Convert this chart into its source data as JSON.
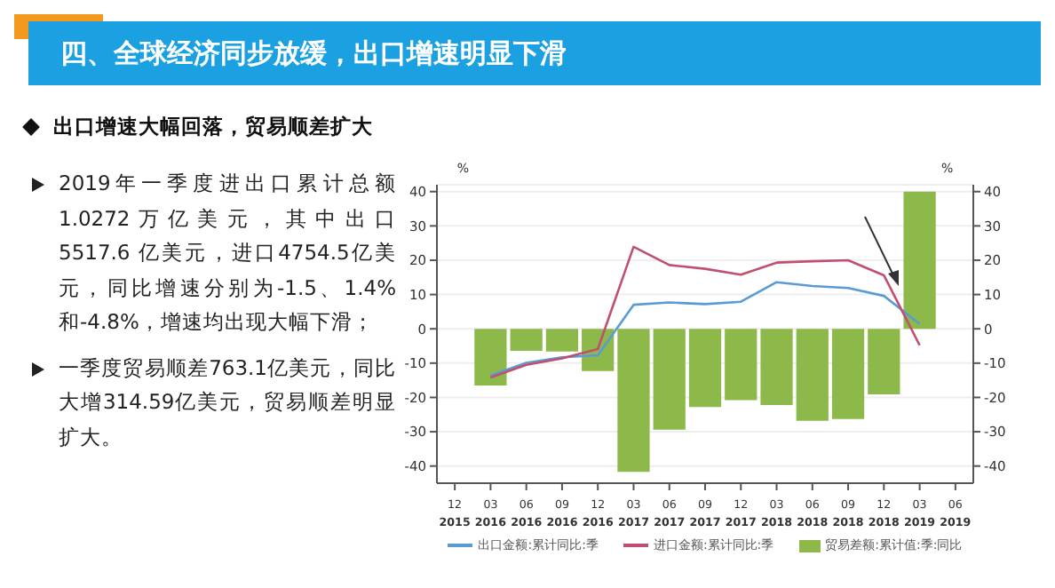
{
  "chart_data": {
    "type": "bar",
    "title": "四、全球经济同步放缓，出口增速明显下滑",
    "subtitle": "出口增速大幅回落，贸易顺差扩大",
    "annotations": [
      "2019年一季度进出口累计总额1.0272万亿美元，其中出口 5517.6 亿美元，进口4754.5亿美元，同比增速分别为-1.5、1.4%和-4.8%，增速均出现大幅下滑；",
      "一季度贸易顺差763.1亿美元，同比大增314.59亿美元，贸易顺差明显扩大。"
    ],
    "categories": [
      "12 2015",
      "03 2016",
      "06 2016",
      "09 2016",
      "12 2016",
      "03 2017",
      "06 2017",
      "09 2017",
      "12 2017",
      "03 2018",
      "06 2018",
      "09 2018",
      "12 2018",
      "03 2019",
      "06 2019"
    ],
    "ylabel": "%",
    "y2label": "%",
    "ylim": [
      -45,
      42
    ],
    "yticks": [
      -40,
      -30,
      -20,
      -10,
      0,
      10,
      20,
      30,
      40
    ],
    "y2lim": [
      -45,
      42
    ],
    "y2ticks": [
      -40,
      -30,
      -20,
      -10,
      0,
      10,
      20,
      30,
      40
    ],
    "grid": "y",
    "legend": "bottom",
    "marker": "none",
    "series": [
      {
        "name": "出口金额:累计同比:季",
        "type": "line",
        "color": "#5b9bd5",
        "values": [
          null,
          -13.6,
          -9.9,
          -8.3,
          -7.7,
          7.0,
          7.7,
          7.2,
          7.9,
          13.6,
          12.5,
          11.9,
          9.6,
          1.4,
          null
        ]
      },
      {
        "name": "进口金额:累计同比:季",
        "type": "line",
        "color": "#c0506e",
        "values": [
          null,
          -14.2,
          -10.5,
          -8.6,
          -5.9,
          23.9,
          18.6,
          17.5,
          15.8,
          19.3,
          19.7,
          20.0,
          15.6,
          -4.8,
          null
        ]
      },
      {
        "name": "贸易差额:累计值:季:同比",
        "axis": "y2",
        "color": "#8db84a",
        "values": [
          null,
          -16.5,
          -6.4,
          -6.6,
          -12.3,
          -41.7,
          -29.4,
          -22.8,
          -20.8,
          -22.2,
          -26.8,
          -26.3,
          -19.1,
          40,
          null
        ]
      }
    ]
  }
}
